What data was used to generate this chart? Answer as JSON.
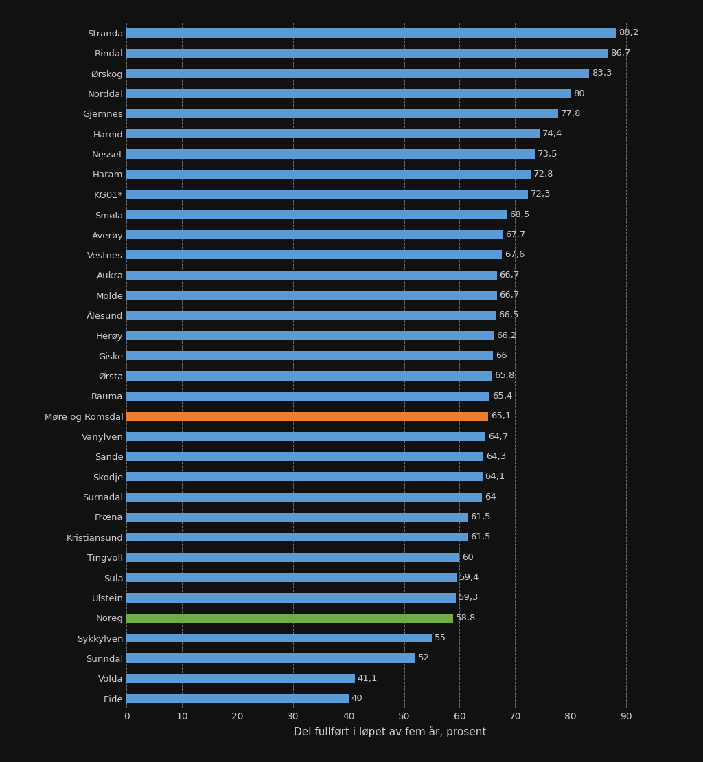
{
  "categories": [
    "Eide",
    "Volda",
    "Sunndal",
    "Sykkylven",
    "Noreg",
    "Ulstein",
    "Sula",
    "Tingvoll",
    "Kristiansund",
    "Fræna",
    "Surnadal",
    "Skodje",
    "Sande",
    "Vanylven",
    "Møre og Romsdal",
    "Rauma",
    "Ørsta",
    "Giske",
    "Herøy",
    "Ålesund",
    "Molde",
    "Aukra",
    "Vestnes",
    "Averøy",
    "Smøla",
    "KG01*",
    "Haram",
    "Nesset",
    "Hareid",
    "Gjemnes",
    "Norddal",
    "Ørskog",
    "Rindal",
    "Stranda"
  ],
  "values": [
    40,
    41.1,
    52,
    55,
    58.8,
    59.3,
    59.4,
    60,
    61.5,
    61.5,
    64,
    64.1,
    64.3,
    64.7,
    65.1,
    65.4,
    65.8,
    66,
    66.2,
    66.5,
    66.7,
    66.7,
    67.6,
    67.7,
    68.5,
    72.3,
    72.8,
    73.5,
    74.4,
    77.8,
    80,
    83.3,
    86.7,
    88.2
  ],
  "bar_colors": [
    "#5B9BD5",
    "#5B9BD5",
    "#5B9BD5",
    "#5B9BD5",
    "#70AD47",
    "#5B9BD5",
    "#5B9BD5",
    "#5B9BD5",
    "#5B9BD5",
    "#5B9BD5",
    "#5B9BD5",
    "#5B9BD5",
    "#5B9BD5",
    "#5B9BD5",
    "#ED7D31",
    "#5B9BD5",
    "#5B9BD5",
    "#5B9BD5",
    "#5B9BD5",
    "#5B9BD5",
    "#5B9BD5",
    "#5B9BD5",
    "#5B9BD5",
    "#5B9BD5",
    "#5B9BD5",
    "#5B9BD5",
    "#5B9BD5",
    "#5B9BD5",
    "#5B9BD5",
    "#5B9BD5",
    "#5B9BD5",
    "#5B9BD5",
    "#5B9BD5",
    "#5B9BD5"
  ],
  "value_labels": [
    "40",
    "41,1",
    "52",
    "55",
    "58,8",
    "59,3",
    "59,4",
    "60",
    "61,5",
    "61,5",
    "64",
    "64,1",
    "64,3",
    "64,7",
    "65,1",
    "65,4",
    "65,8",
    "66",
    "66,2",
    "66,5",
    "66,7",
    "66,7",
    "67,6",
    "67,7",
    "68,5",
    "72,3",
    "72,8",
    "73,5",
    "74,4",
    "77,8",
    "80",
    "83,3",
    "86,7",
    "88,2"
  ],
  "xlabel": "Del fullført i løpet av fem år, prosent",
  "xlim": [
    0,
    95
  ],
  "xticks": [
    0,
    10,
    20,
    30,
    40,
    50,
    60,
    70,
    80,
    90
  ],
  "background_color": "#111111",
  "text_color": "#cccccc",
  "grid_color": "#ffffff",
  "bar_height": 0.45,
  "label_fontsize": 9.5,
  "tick_fontsize": 10,
  "xlabel_fontsize": 11
}
